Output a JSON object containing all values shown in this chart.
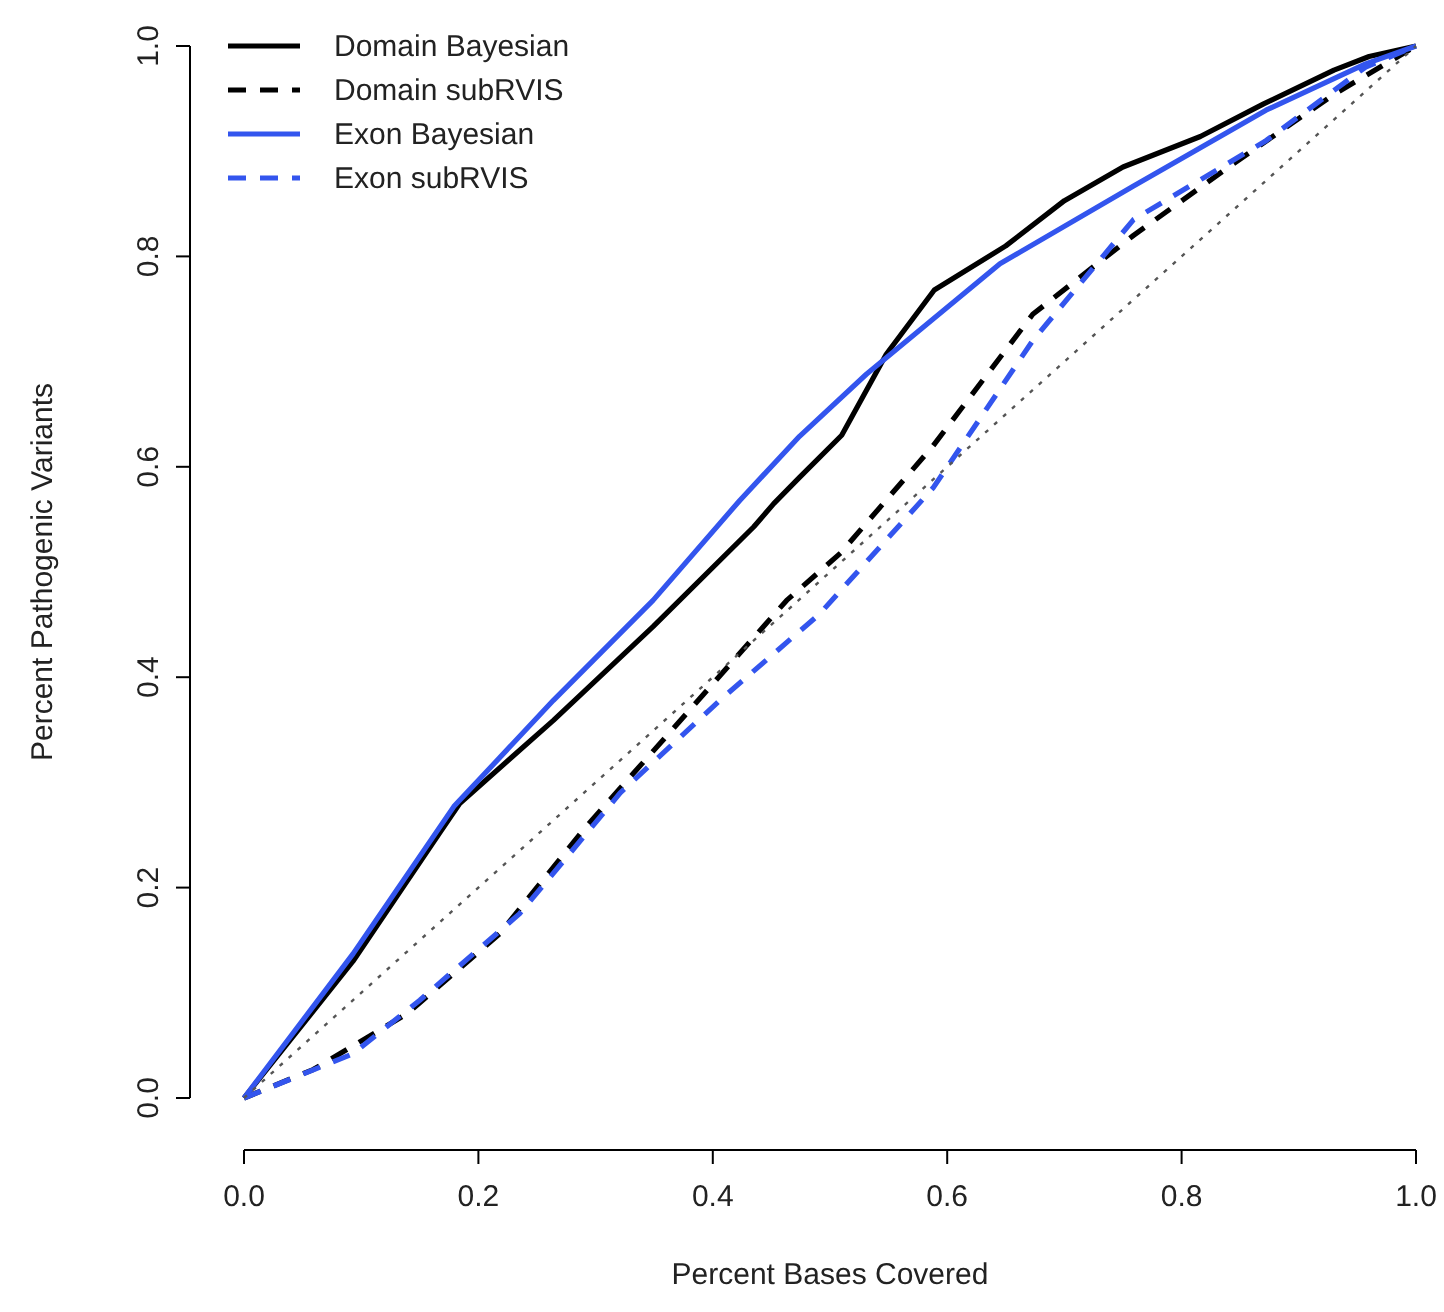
{
  "chart_data": {
    "type": "line",
    "xlabel": "Percent Bases Covered",
    "ylabel": "Percent Pathogenic Variants",
    "xlim": [
      0,
      1
    ],
    "ylim": [
      0,
      1
    ],
    "xticks": [
      {
        "value": 0,
        "label": "0.0"
      },
      0.2,
      0.4,
      0.6,
      0.8,
      {
        "value": 1,
        "label": "1.0"
      }
    ],
    "yticks": [
      {
        "value": 0,
        "label": "0.0"
      },
      0.2,
      0.4,
      0.6,
      0.8,
      {
        "value": 1,
        "label": "1.0"
      }
    ],
    "legend": "top left",
    "grid": false,
    "series": [
      {
        "name": "Domain Bayesian",
        "color": "#000000",
        "line_style": "solid",
        "x": [
          0,
          0.093,
          0.167,
          0.184,
          0.264,
          0.349,
          0.435,
          0.452,
          0.474,
          0.51,
          0.548,
          0.589,
          0.65,
          0.7,
          0.75,
          0.816,
          0.87,
          0.93,
          0.96,
          1
        ],
        "values": [
          0,
          0.13,
          0.252,
          0.28,
          0.359,
          0.448,
          0.543,
          0.565,
          0.59,
          0.63,
          0.707,
          0.768,
          0.81,
          0.853,
          0.885,
          0.914,
          0.945,
          0.977,
          0.99,
          1
        ]
      },
      {
        "name": "Domain subRVIS",
        "color": "#000000",
        "line_style": "dashed",
        "x": [
          0,
          0.059,
          0.139,
          0.218,
          0.292,
          0.378,
          0.463,
          0.509,
          0.588,
          0.673,
          0.759,
          0.844,
          0.93,
          1
        ],
        "values": [
          0,
          0.027,
          0.08,
          0.156,
          0.258,
          0.366,
          0.473,
          0.518,
          0.62,
          0.745,
          0.82,
          0.888,
          0.954,
          1
        ]
      },
      {
        "name": "Exon Bayesian",
        "color": "#3355ee",
        "line_style": "solid",
        "x": [
          0,
          0.093,
          0.179,
          0.264,
          0.349,
          0.423,
          0.474,
          0.531,
          0.645,
          0.759,
          0.872,
          0.957,
          1
        ],
        "values": [
          0,
          0.137,
          0.277,
          0.378,
          0.473,
          0.568,
          0.629,
          0.688,
          0.793,
          0.867,
          0.939,
          0.983,
          1
        ]
      },
      {
        "name": "Exon subRVIS",
        "color": "#3355ee",
        "line_style": "dashed",
        "x": [
          0,
          0.031,
          0.093,
          0.15,
          0.235,
          0.321,
          0.406,
          0.491,
          0.588,
          0.673,
          0.759,
          0.872,
          0.957,
          1
        ],
        "values": [
          0,
          0.014,
          0.042,
          0.093,
          0.175,
          0.29,
          0.378,
          0.46,
          0.58,
          0.72,
          0.835,
          0.91,
          0.98,
          1
        ]
      },
      {
        "color": "#555555",
        "line_style": "dotted",
        "x": [
          0,
          1
        ],
        "values": [
          0,
          1
        ]
      }
    ]
  }
}
